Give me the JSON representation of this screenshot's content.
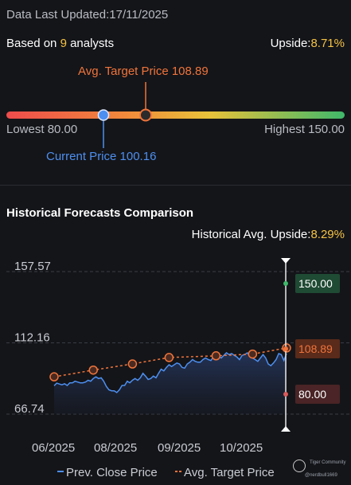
{
  "header": {
    "last_updated_label": "Data Last Updated:",
    "last_updated_value": "17/11/2025"
  },
  "summary": {
    "based_on_prefix": "Based on ",
    "analyst_count": "9",
    "based_on_suffix": " analysts",
    "upside_label": "Upside:",
    "upside_value": "8.71%"
  },
  "price_range": {
    "avg_target_label": "Avg. Target Price 108.89",
    "lowest_label": "Lowest 80.00",
    "highest_label": "Highest 150.00",
    "current_label": "Current Price 100.16",
    "low": 80.0,
    "high": 150.0,
    "current": 100.16,
    "avg_target": 108.89
  },
  "historical": {
    "section_title": "Historical Forecasts Comparison",
    "avg_upside_label": "Historical Avg. Upside:",
    "avg_upside_value": "8.29%"
  },
  "colors": {
    "accent_yellow": "#f6c343",
    "orange": "#f0743b",
    "blue": "#4d8ff0",
    "green_badge": "#1f4a33",
    "orange_badge": "#5a2a1a",
    "red_badge": "#4a2426"
  },
  "chart_data": {
    "type": "line",
    "x_tick_labels": [
      "06/2025",
      "08/2025",
      "09/2025",
      "10/2025"
    ],
    "y_tick_labels": [
      "157.57",
      "112.16",
      "66.74"
    ],
    "ylim": [
      66.74,
      157.57
    ],
    "grid": true,
    "legend": {
      "position": "bottom",
      "entries": [
        "Prev. Close Price",
        "Avg. Target Price"
      ]
    },
    "badges": {
      "high": "150.00",
      "avg": "108.89",
      "low": "80.00"
    },
    "series": [
      {
        "name": "Prev. Close Price",
        "values": [
          84.8,
          86.5,
          85.9,
          85.4,
          86.1,
          85.0,
          86.7,
          86.7,
          87.7,
          87.2,
          86.7,
          86.7,
          87.2,
          88.3,
          87.7,
          89.4,
          90.5,
          89.4,
          89.9,
          87.7,
          84.4,
          82.2,
          81.6,
          81.6,
          80.5,
          82.2,
          85.0,
          85.0,
          87.7,
          86.7,
          88.3,
          89.4,
          88.3,
          89.9,
          92.7,
          91.0,
          88.8,
          89.4,
          91.0,
          89.9,
          92.7,
          95.4,
          94.3,
          96.5,
          98.2,
          97.1,
          98.2,
          99.3,
          98.7,
          96.5,
          96.0,
          98.7,
          99.8,
          101.5,
          100.4,
          99.8,
          99.8,
          101.5,
          102.5,
          101.5,
          100.9,
          103.1,
          102.5,
          103.7,
          102.5,
          104.2,
          105.8,
          104.7,
          105.3,
          104.2,
          103.1,
          101.5,
          104.2,
          104.7,
          105.8,
          103.7,
          102.5,
          101.5,
          100.4,
          102.5,
          104.7,
          102.5,
          98.7,
          97.6,
          99.3,
          101.5,
          105.3,
          104.7,
          100.9,
          105.3
        ]
      },
      {
        "name": "Avg. Target Price",
        "points": [
          {
            "idx": 0,
            "value": 90.5
          },
          {
            "idx": 15,
            "value": 94.8
          },
          {
            "idx": 30,
            "value": 98.7
          },
          {
            "idx": 44,
            "value": 102.8
          },
          {
            "idx": 62,
            "value": 103.9
          },
          {
            "idx": 76,
            "value": 105.0
          },
          {
            "idx": 89,
            "value": 108.9
          }
        ]
      }
    ]
  },
  "watermark": {
    "brand": "Tiger Community",
    "user": "@nerdbull1669"
  }
}
